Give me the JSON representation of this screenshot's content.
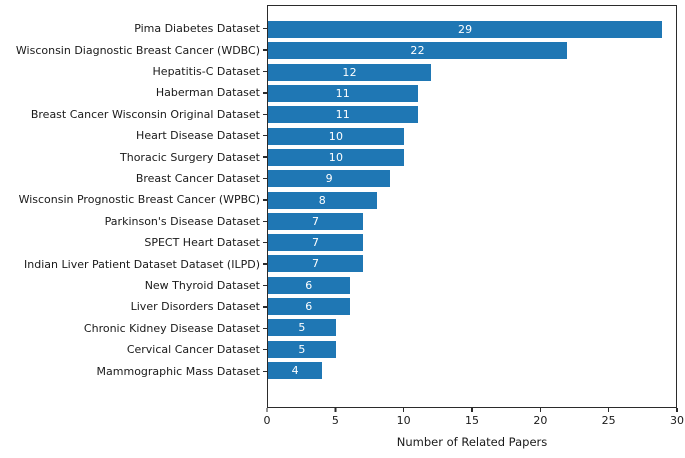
{
  "chart_data": {
    "type": "bar",
    "orientation": "horizontal",
    "title": "",
    "xlabel": "Number of Related Papers",
    "ylabel": "",
    "xlim": [
      0,
      30
    ],
    "xticks": [
      0,
      5,
      10,
      15,
      20,
      25,
      30
    ],
    "grid": false,
    "legend_position": "none",
    "bar_color": "#1f77b4",
    "value_label_color": "#ffffff",
    "categories": [
      "Pima Diabetes Dataset",
      "Wisconsin Diagnostic Breast Cancer (WDBC)",
      "Hepatitis-C Dataset",
      "Haberman Dataset",
      "Breast Cancer Wisconsin Original Dataset",
      "Heart Disease Dataset",
      "Thoracic Surgery Dataset",
      "Breast Cancer Dataset",
      "Wisconsin Prognostic Breast Cancer (WPBC)",
      "Parkinson's Disease Dataset",
      "SPECT Heart Dataset",
      "Indian Liver Patient Dataset Dataset (ILPD)",
      "New Thyroid Dataset",
      "Liver Disorders Dataset",
      "Chronic Kidney Disease Dataset",
      "Cervical Cancer Dataset",
      "Mammographic Mass Dataset"
    ],
    "values": [
      29,
      22,
      12,
      11,
      11,
      10,
      10,
      9,
      8,
      7,
      7,
      7,
      6,
      6,
      5,
      5,
      4
    ]
  }
}
